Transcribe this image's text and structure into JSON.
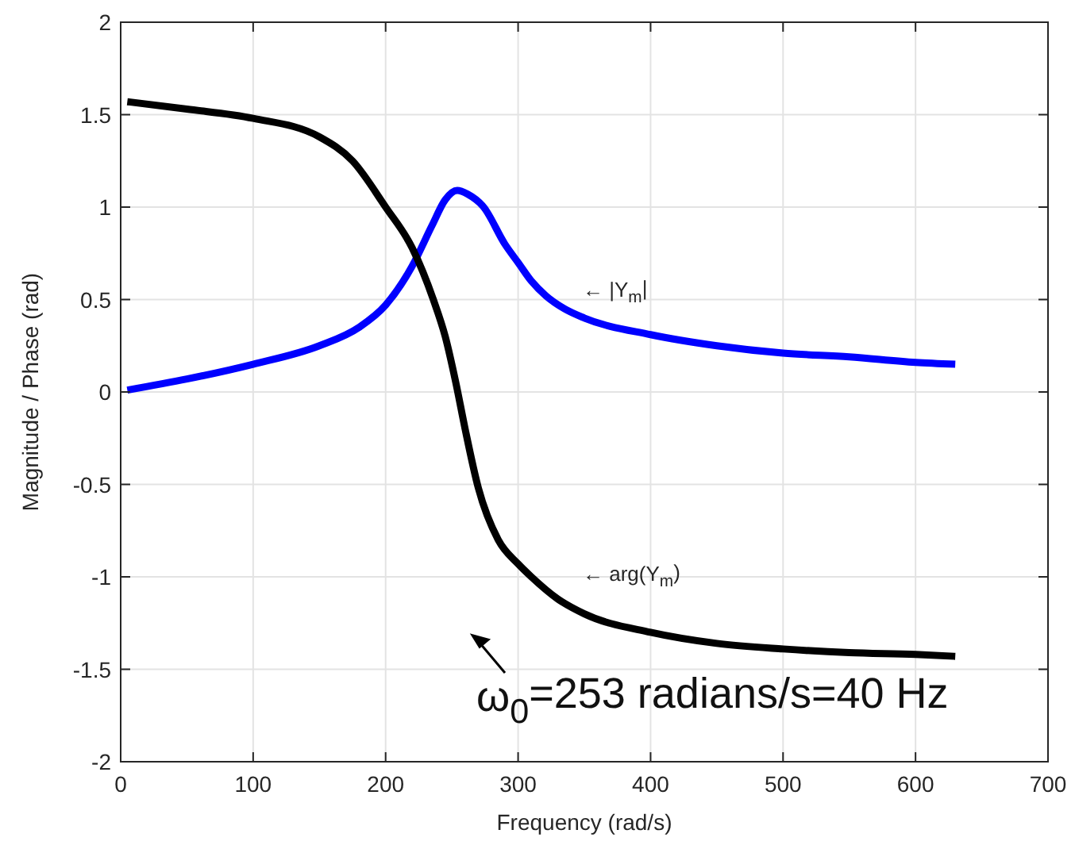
{
  "chart_data": {
    "type": "line",
    "xlabel": "Frequency (rad/s)",
    "ylabel": "Magnitude / Phase (rad)",
    "xlim": [
      0,
      700
    ],
    "ylim": [
      -2,
      2
    ],
    "xticks": [
      0,
      100,
      200,
      300,
      400,
      500,
      600,
      700
    ],
    "yticks": [
      -2,
      -1.5,
      -1,
      -0.5,
      0,
      0.5,
      1,
      1.5,
      2
    ],
    "grid": true,
    "marker": "none",
    "line_style": "solid",
    "series": [
      {
        "color": "#0000ff",
        "x": [
          5,
          50,
          100,
          150,
          180,
          200,
          220,
          235,
          245,
          254,
          262,
          274,
          290,
          300,
          310,
          321,
          335,
          350,
          400,
          450,
          500,
          550,
          600,
          630
        ],
        "values": [
          0.01,
          0.07,
          0.15,
          0.25,
          0.35,
          0.47,
          0.68,
          0.9,
          1.04,
          1.09,
          1.07,
          1.0,
          0.8,
          0.7,
          0.6,
          0.52,
          0.45,
          0.4,
          0.31,
          0.25,
          0.21,
          0.19,
          0.16,
          0.15
        ]
      },
      {
        "color": "#000000",
        "x": [
          5,
          50,
          100,
          150,
          175,
          200,
          220,
          236,
          245,
          253,
          260,
          270,
          285,
          300,
          310,
          330,
          350,
          400,
          450,
          500,
          550,
          600,
          630
        ],
        "values": [
          1.57,
          1.53,
          1.48,
          1.38,
          1.25,
          1.0,
          0.78,
          0.5,
          0.3,
          0.05,
          -0.2,
          -0.52,
          -0.8,
          -0.93,
          -1.0,
          -1.12,
          -1.2,
          -1.3,
          -1.36,
          -1.39,
          -1.41,
          -1.42,
          -1.43
        ]
      }
    ],
    "annotations": [
      "← |Y$_{m}$|",
      "← arg(Y$_{m}$)",
      "ω$_{0}$=253 radians/s=40 Hz"
    ]
  }
}
